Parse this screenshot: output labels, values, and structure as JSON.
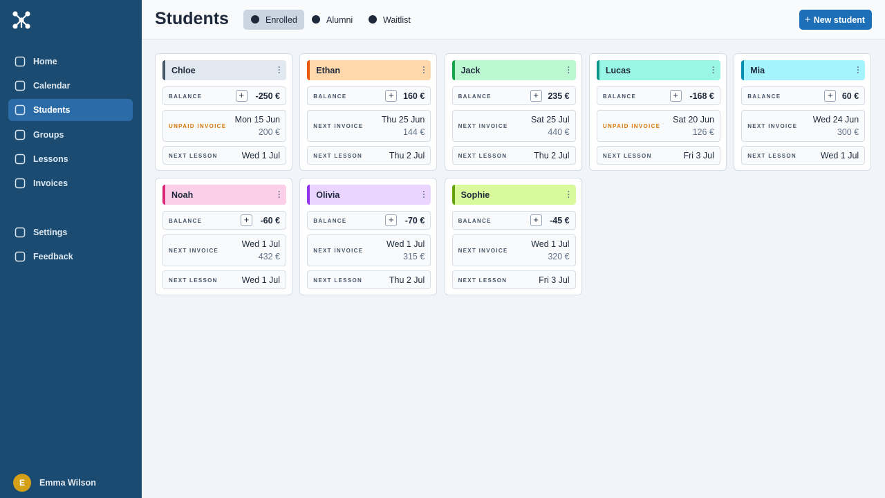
{
  "sidebar": {
    "nav": [
      "Home",
      "Calendar",
      "Students",
      "Groups",
      "Lessons",
      "Invoices"
    ],
    "active": 2,
    "secondary": [
      "Settings",
      "Feedback"
    ],
    "user": {
      "initial": "E",
      "name": "Emma Wilson"
    }
  },
  "header": {
    "title": "Students",
    "tabs": [
      "Enrolled",
      "Alumni",
      "Waitlist"
    ],
    "active_tab": 0,
    "button": "New student"
  },
  "card_labels": {
    "balance": "BALANCE",
    "next_lesson": "NEXT LESSON"
  },
  "students": [
    {
      "name": "Chloe",
      "color": "#e2e8f0",
      "accent": "#475569",
      "balance": "-250 €",
      "invoice_label": "UNPAID INVOICE",
      "invoice_color": "#d97706",
      "invoice_date": "Mon 15 Jun",
      "invoice_amount": "200 €",
      "next_lesson": "Wed 1 Jul"
    },
    {
      "name": "Ethan",
      "color": "#fed7aa",
      "accent": "#ea580c",
      "balance": "160 €",
      "invoice_label": "NEXT INVOICE",
      "invoice_color": "#475569",
      "invoice_date": "Thu 25 Jun",
      "invoice_amount": "144 €",
      "next_lesson": "Thu 2 Jul"
    },
    {
      "name": "Jack",
      "color": "#bbf7d0",
      "accent": "#16a34a",
      "balance": "235 €",
      "invoice_label": "NEXT INVOICE",
      "invoice_color": "#475569",
      "invoice_date": "Sat 25 Jul",
      "invoice_amount": "440 €",
      "next_lesson": "Thu 2 Jul"
    },
    {
      "name": "Lucas",
      "color": "#99f6e4",
      "accent": "#0d9488",
      "balance": "-168 €",
      "invoice_label": "UNPAID INVOICE",
      "invoice_color": "#d97706",
      "invoice_date": "Sat 20 Jun",
      "invoice_amount": "126 €",
      "next_lesson": "Fri 3 Jul"
    },
    {
      "name": "Mia",
      "color": "#a5f3fc",
      "accent": "#0891b2",
      "balance": "60 €",
      "invoice_label": "NEXT INVOICE",
      "invoice_color": "#475569",
      "invoice_date": "Wed 24 Jun",
      "invoice_amount": "300 €",
      "next_lesson": "Wed 1 Jul"
    },
    {
      "name": "Noah",
      "color": "#fbcfe8",
      "accent": "#db2777",
      "balance": "-60 €",
      "invoice_label": "NEXT INVOICE",
      "invoice_color": "#475569",
      "invoice_date": "Wed 1 Jul",
      "invoice_amount": "432 €",
      "next_lesson": "Wed 1 Jul"
    },
    {
      "name": "Olivia",
      "color": "#e9d5ff",
      "accent": "#9333ea",
      "balance": "-70 €",
      "invoice_label": "NEXT INVOICE",
      "invoice_color": "#475569",
      "invoice_date": "Wed 1 Jul",
      "invoice_amount": "315 €",
      "next_lesson": "Thu 2 Jul"
    },
    {
      "name": "Sophie",
      "color": "#d9f99d",
      "accent": "#65a30d",
      "balance": "-45 €",
      "invoice_label": "NEXT INVOICE",
      "invoice_color": "#475569",
      "invoice_date": "Wed 1 Jul",
      "invoice_amount": "320 €",
      "next_lesson": "Fri 3 Jul"
    }
  ]
}
